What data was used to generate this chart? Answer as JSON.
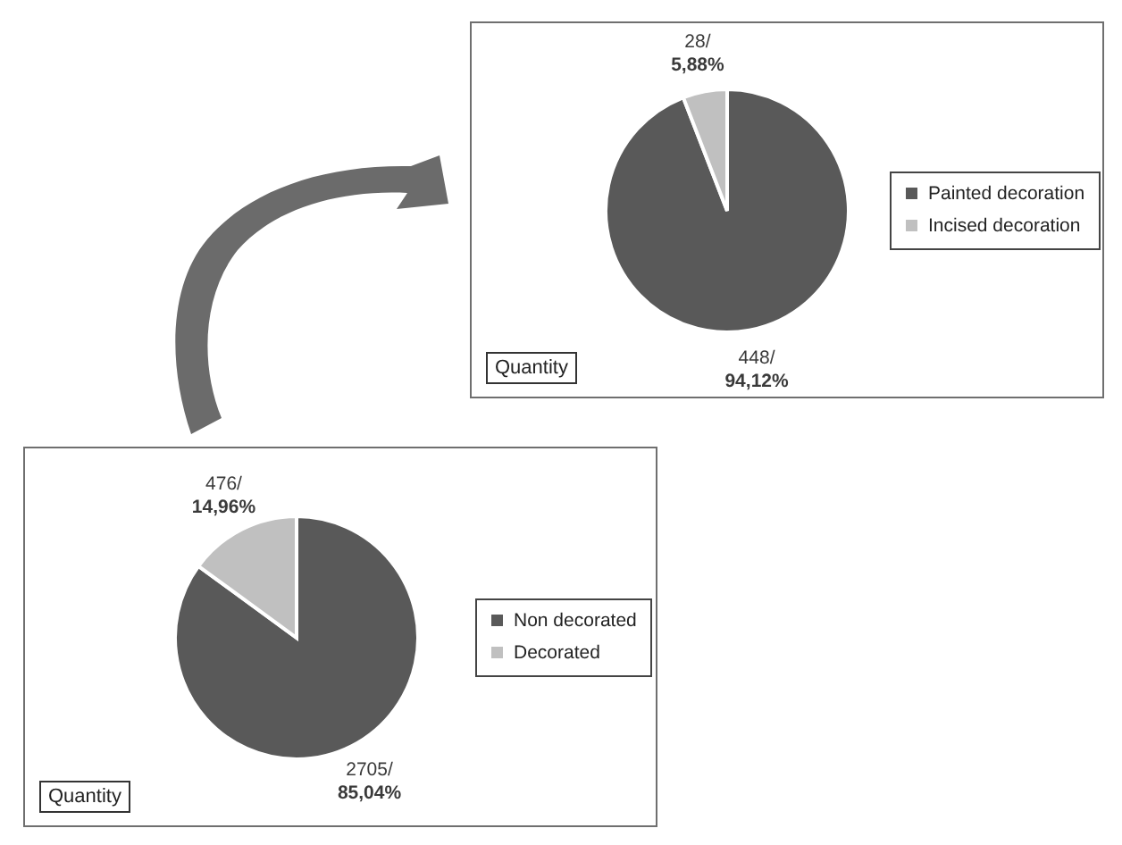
{
  "chart_data": [
    {
      "type": "pie",
      "categories": [
        "Painted decoration",
        "Incised decoration"
      ],
      "values": [
        94.12,
        5.88
      ],
      "colors": [
        "#595959",
        "#c0c0c0"
      ],
      "value_labels": [
        "448/\n94,12%",
        "28/\n5,88%"
      ],
      "legend": "right",
      "annotations": [
        "Quantity"
      ]
    },
    {
      "type": "pie",
      "categories": [
        "Non decorated",
        "Decorated"
      ],
      "values": [
        85.04,
        14.96
      ],
      "colors": [
        "#595959",
        "#c0c0c0"
      ],
      "value_labels": [
        "2705/\n85,04%",
        "476/\n14,96%"
      ],
      "legend": "right",
      "annotations": [
        "Quantity"
      ]
    }
  ]
}
